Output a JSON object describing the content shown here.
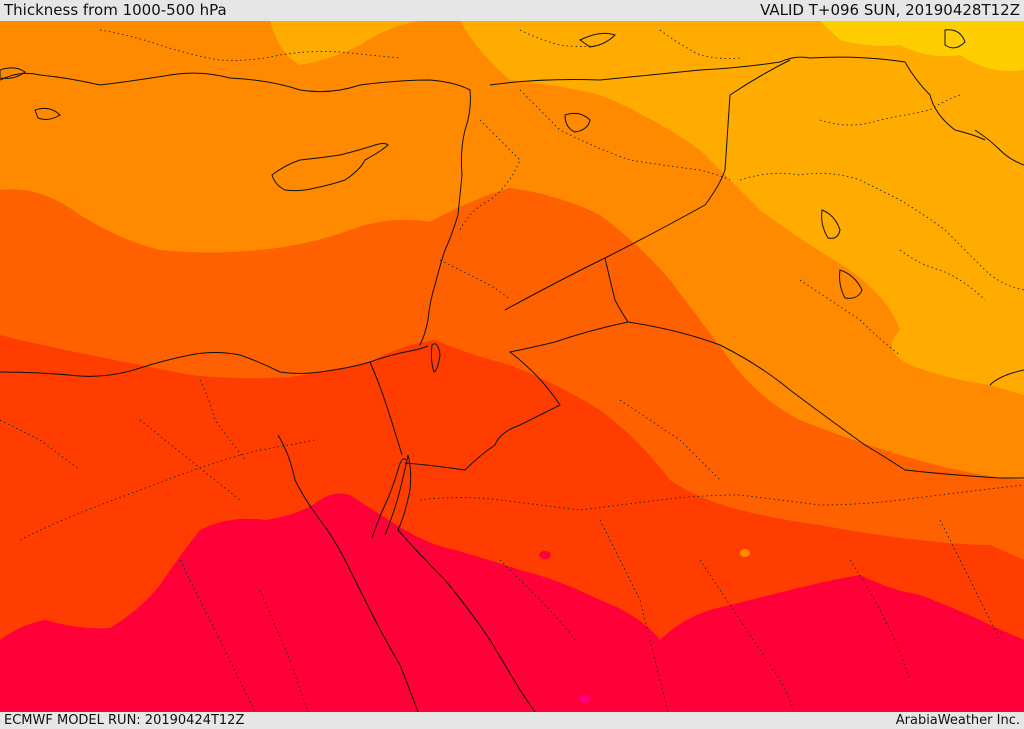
{
  "header": {
    "title": "Thickness from 1000-500 hPa",
    "valid": "VALID T+096 SUN, 20190428T12Z"
  },
  "footer": {
    "model_run": "ECMWF MODEL RUN: 20190424T12Z",
    "credit": "ArabiaWeather Inc."
  },
  "colors": {
    "band_yellow": "#ffce00",
    "band_light_orange": "#ffab00",
    "band_orange": "#ff8a00",
    "band_dark_orange": "#ff6000",
    "band_red_orange": "#ff3d00",
    "band_crimson": "#ff0038",
    "band_magenta": "#ff0080",
    "boundary_line": "#111111"
  }
}
